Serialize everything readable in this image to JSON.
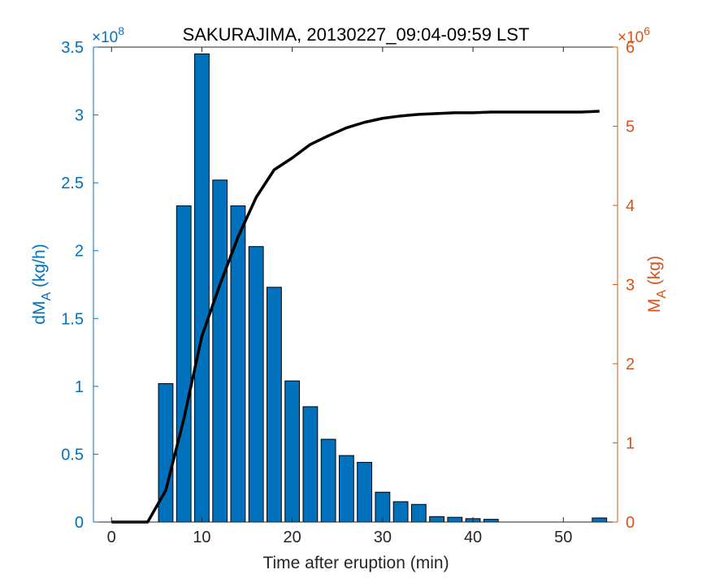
{
  "chart_data": {
    "type": "bar",
    "title": "SAKURAJIMA, 20130227_09:04-09:59 LST",
    "xlabel": "Time after eruption (min)",
    "ylabel_left": {
      "main": "dM",
      "sub": "A",
      "unit": " (kg/h)"
    },
    "ylabel_right": {
      "main": "M",
      "sub": "A",
      "unit": " (kg)"
    },
    "left_exponent": {
      "prefix": "×10",
      "power": "8"
    },
    "right_exponent": {
      "prefix": "×10",
      "power": "6"
    },
    "xlim": [
      -2,
      56
    ],
    "ylim_left": [
      0,
      3.5
    ],
    "ylim_right": [
      0,
      6
    ],
    "xticks": [
      0,
      10,
      20,
      30,
      40,
      50
    ],
    "yticks_left": [
      0,
      0.5,
      1,
      1.5,
      2,
      2.5,
      3,
      3.5
    ],
    "yticks_right": [
      0,
      1,
      2,
      3,
      4,
      5,
      6
    ],
    "colors": {
      "bars": "#0072BD",
      "left_axis": "#0072BD",
      "right_axis": "#D95319",
      "line": "#000000"
    },
    "series": [
      {
        "kind": "bar",
        "axis": "left",
        "x": [
          6,
          8,
          10,
          12,
          14,
          16,
          18,
          20,
          22,
          24,
          26,
          28,
          30,
          32,
          34,
          36,
          38,
          40,
          42,
          44,
          46,
          48,
          50,
          52,
          54
        ],
        "values": [
          1.02,
          2.33,
          3.45,
          2.52,
          2.33,
          2.03,
          1.73,
          1.04,
          0.85,
          0.61,
          0.49,
          0.44,
          0.22,
          0.15,
          0.13,
          0.04,
          0.035,
          0.025,
          0.02,
          0,
          0,
          0,
          0,
          0,
          0.03
        ]
      },
      {
        "kind": "line",
        "axis": "right",
        "x": [
          0,
          4,
          6,
          8,
          10,
          12,
          14,
          16,
          18,
          20,
          22,
          24,
          26,
          28,
          30,
          32,
          34,
          36,
          38,
          40,
          42,
          44,
          46,
          48,
          50,
          52,
          54
        ],
        "values": [
          0,
          0,
          0.4,
          1.3,
          2.35,
          3.0,
          3.6,
          4.1,
          4.45,
          4.6,
          4.77,
          4.88,
          4.98,
          5.05,
          5.1,
          5.13,
          5.15,
          5.16,
          5.17,
          5.17,
          5.18,
          5.18,
          5.18,
          5.18,
          5.18,
          5.18,
          5.19
        ]
      }
    ]
  }
}
